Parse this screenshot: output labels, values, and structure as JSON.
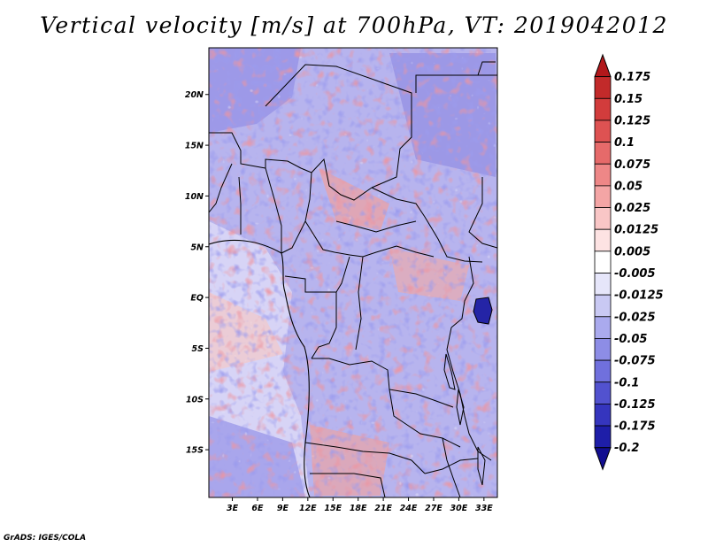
{
  "title": "Vertical velocity [m/s] at 700hPa, VT: 2019042012",
  "credit": "GrADS: IGES/COLA",
  "map": {
    "lon_labels": [
      "3E",
      "6E",
      "9E",
      "12E",
      "15E",
      "18E",
      "21E",
      "24E",
      "27E",
      "30E",
      "33E"
    ],
    "lat_labels": [
      "20N",
      "15N",
      "10N",
      "5N",
      "EQ",
      "5S",
      "10S",
      "15S"
    ],
    "lon_values": [
      3,
      6,
      9,
      12,
      15,
      18,
      21,
      24,
      27,
      30,
      33
    ],
    "lat_values": [
      20,
      15,
      10,
      5,
      0,
      -5,
      -10,
      -15
    ],
    "lon_range": [
      0.2,
      34.6
    ],
    "lat_range": [
      -19.7,
      24.6
    ]
  },
  "colorbar": {
    "labels": [
      "0.175",
      "0.15",
      "0.125",
      "0.1",
      "0.075",
      "0.05",
      "0.025",
      "0.0125",
      "0.005",
      "-0.005",
      "-0.0125",
      "-0.025",
      "-0.05",
      "-0.075",
      "-0.1",
      "-0.125",
      "-0.175",
      "-0.2"
    ],
    "colors": [
      "#b2181b",
      "#c22a2a",
      "#d23c3c",
      "#de5252",
      "#e66a6a",
      "#ee8787",
      "#f4a5a5",
      "#f9c6c6",
      "#fde3e3",
      "#ffffff",
      "#e6e6fa",
      "#c9c9f3",
      "#aaaaee",
      "#8d8de6",
      "#7070dd",
      "#5252cf",
      "#3535be",
      "#1e1ea8",
      "#120e90"
    ]
  },
  "colors": {
    "positive": "#cc3333",
    "negative": "#4b4bd6",
    "border": "#000000"
  }
}
